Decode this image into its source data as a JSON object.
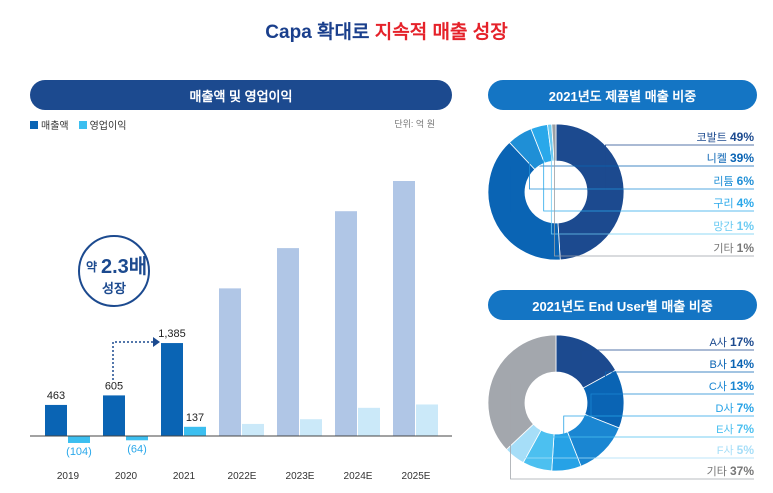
{
  "title": {
    "part1": "Capa 확대로",
    "part2": "지속적 매출 성장"
  },
  "left_panel": {
    "header": "매출액 및 영업이익",
    "legend": [
      {
        "label": "매출액",
        "color": "#0a64b4"
      },
      {
        "label": "영업이익",
        "color": "#3cbff0"
      }
    ],
    "unit": "단위: 억 원",
    "badge": {
      "prefix": "약",
      "value": "2.3배",
      "sub": "성장"
    }
  },
  "pie1": {
    "header": "2021년도 제품별 매출 비중"
  },
  "pie2": {
    "header": "2021년도 End User별 매출 비중"
  },
  "colors": {
    "revenue": "#0a64b4",
    "profit": "#3cbff0",
    "revenue_est": "#b0c6e6",
    "profit_est": "#cbe9f9",
    "text_dark": "#1c4a8f",
    "muted": "#888888"
  },
  "chart_data": [
    {
      "type": "bar",
      "categories": [
        "2019",
        "2020",
        "2021",
        "2022E",
        "2023E",
        "2024E",
        "2025E"
      ],
      "series": [
        {
          "name": "매출액",
          "values": [
            463,
            605,
            1385,
            2200,
            2800,
            3350,
            3800
          ],
          "labels": [
            "463",
            "605",
            "1,385",
            "",
            "",
            "",
            ""
          ]
        },
        {
          "name": "영업이익",
          "values": [
            -104,
            -64,
            137,
            180,
            250,
            420,
            470
          ],
          "labels": [
            "(104)",
            "(64)",
            "137",
            "",
            "",
            "",
            ""
          ]
        }
      ],
      "ylim": [
        -250,
        3900
      ]
    },
    {
      "type": "pie",
      "slices": [
        {
          "label": "코발트",
          "pct": "49%",
          "value": 49,
          "color": "#1c4a8f"
        },
        {
          "label": "니켈",
          "pct": "39%",
          "value": 39,
          "color": "#0a64b4"
        },
        {
          "label": "리튬",
          "pct": "6%",
          "value": 6,
          "color": "#1f8fd6"
        },
        {
          "label": "구리",
          "pct": "4%",
          "value": 4,
          "color": "#2aa8ea"
        },
        {
          "label": "망간",
          "pct": "1%",
          "value": 1,
          "color": "#6ccbf2"
        },
        {
          "label": "기타",
          "pct": "1%",
          "value": 1,
          "color": "#9aa0a6"
        }
      ]
    },
    {
      "type": "pie",
      "slices": [
        {
          "label": "A사",
          "pct": "17%",
          "value": 17,
          "color": "#1c4a8f"
        },
        {
          "label": "B사",
          "pct": "14%",
          "value": 14,
          "color": "#0a64b4"
        },
        {
          "label": "C사",
          "pct": "13%",
          "value": 13,
          "color": "#1a86d2"
        },
        {
          "label": "D사",
          "pct": "7%",
          "value": 7,
          "color": "#26a2e6"
        },
        {
          "label": "E사",
          "pct": "7%",
          "value": 7,
          "color": "#4cc0f0"
        },
        {
          "label": "F사",
          "pct": "5%",
          "value": 5,
          "color": "#a6def8"
        },
        {
          "label": "기타",
          "pct": "37%",
          "value": 37,
          "color": "#a3a7ad"
        }
      ]
    }
  ]
}
